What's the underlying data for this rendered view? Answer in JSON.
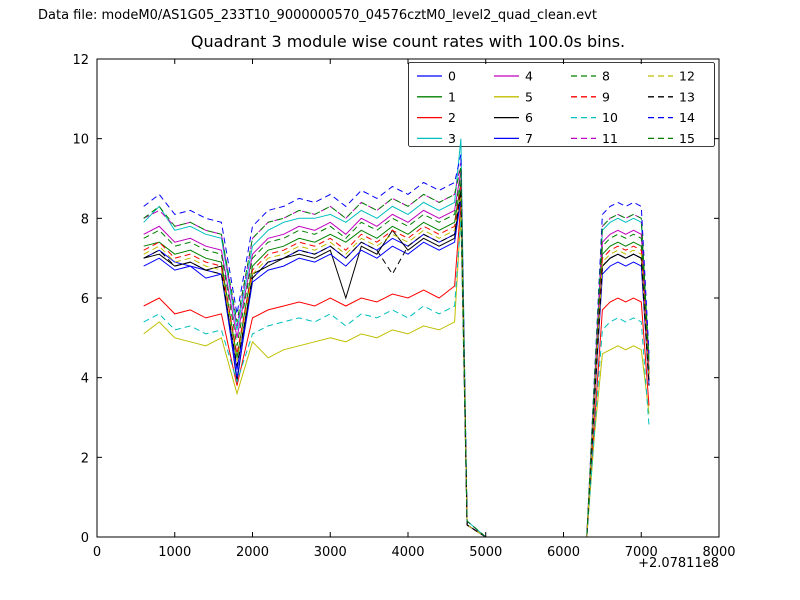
{
  "header": {
    "data_file_label": "Data file: modeM0/AS1G05_233T10_9000000570_04576cztM0_level2_quad_clean.evt"
  },
  "chart_data": {
    "type": "line",
    "title": "Quadrant 3 module wise count rates with 100.0s bins.",
    "xlabel": "",
    "ylabel": "",
    "xlim": [
      0,
      8000
    ],
    "ylim": [
      0,
      12
    ],
    "xticks": [
      0,
      1000,
      2000,
      3000,
      4000,
      5000,
      6000,
      7000,
      8000
    ],
    "yticks": [
      0,
      2,
      4,
      6,
      8,
      10,
      12
    ],
    "x_offset_label": "+2.07811e8",
    "legend_position": "upper center",
    "grid": false,
    "x": [
      600,
      800,
      1000,
      1200,
      1400,
      1600,
      1800,
      2000,
      2200,
      2400,
      2600,
      2800,
      3000,
      3200,
      3400,
      3600,
      3800,
      4000,
      4200,
      4400,
      4600,
      4680,
      4760,
      5000,
      5500,
      6000,
      6300,
      6400,
      6500,
      6600,
      6700,
      6800,
      6900,
      7000,
      7100
    ],
    "series": [
      {
        "name": "0",
        "color": "#0000ff",
        "dashed": false,
        "values": [
          7.0,
          7.2,
          6.9,
          6.8,
          6.7,
          6.6,
          4.2,
          6.5,
          6.9,
          7.0,
          7.2,
          7.1,
          7.3,
          7.0,
          7.4,
          7.2,
          7.5,
          7.3,
          7.6,
          7.4,
          7.6,
          8.6,
          0.3,
          0,
          0,
          0,
          0,
          3.5,
          6.8,
          7.0,
          7.1,
          7.0,
          7.1,
          7.0,
          3.9
        ]
      },
      {
        "name": "1",
        "color": "#008000",
        "dashed": false,
        "values": [
          7.3,
          7.4,
          7.1,
          7.2,
          7.0,
          6.9,
          4.5,
          6.8,
          7.2,
          7.3,
          7.5,
          7.4,
          7.6,
          7.4,
          7.7,
          7.5,
          7.8,
          7.6,
          7.9,
          7.7,
          7.9,
          8.9,
          0.3,
          0,
          0,
          0,
          0,
          3.6,
          7.1,
          7.3,
          7.4,
          7.3,
          7.4,
          7.3,
          4.1
        ]
      },
      {
        "name": "2",
        "color": "#ff0000",
        "dashed": false,
        "values": [
          5.8,
          6.0,
          5.6,
          5.7,
          5.5,
          5.6,
          3.8,
          5.5,
          5.7,
          5.8,
          5.9,
          5.8,
          6.0,
          5.8,
          6.0,
          5.9,
          6.1,
          6.0,
          6.2,
          6.0,
          6.3,
          8.4,
          0.3,
          0,
          0,
          0,
          0,
          2.9,
          5.7,
          5.9,
          6.0,
          5.9,
          6.0,
          5.9,
          3.3
        ]
      },
      {
        "name": "3",
        "color": "#00bfbf",
        "dashed": false,
        "values": [
          7.9,
          8.3,
          7.7,
          7.8,
          7.6,
          7.5,
          5.2,
          7.3,
          7.7,
          7.9,
          8.0,
          8.0,
          8.1,
          7.9,
          8.2,
          8.0,
          8.3,
          8.1,
          8.4,
          8.2,
          8.4,
          10.0,
          0.4,
          0,
          0,
          0,
          0,
          3.9,
          7.7,
          7.9,
          8.0,
          7.9,
          8.0,
          7.9,
          4.4
        ]
      },
      {
        "name": "4",
        "color": "#bf00bf",
        "dashed": false,
        "values": [
          7.6,
          7.8,
          7.4,
          7.5,
          7.3,
          7.2,
          5.0,
          7.1,
          7.5,
          7.6,
          7.8,
          7.7,
          7.9,
          7.6,
          8.0,
          7.8,
          8.1,
          7.9,
          8.2,
          8.0,
          8.2,
          9.2,
          0.3,
          0,
          0,
          0,
          0,
          3.8,
          7.4,
          7.6,
          7.7,
          7.6,
          7.7,
          7.6,
          4.2
        ]
      },
      {
        "name": "5",
        "color": "#bfbf00",
        "dashed": false,
        "values": [
          5.1,
          5.4,
          5.0,
          4.9,
          4.8,
          5.0,
          3.6,
          4.9,
          4.5,
          4.7,
          4.8,
          4.9,
          5.0,
          4.9,
          5.1,
          5.0,
          5.2,
          5.1,
          5.3,
          5.2,
          5.4,
          8.1,
          0.3,
          0,
          0,
          0,
          0,
          2.6,
          4.6,
          4.7,
          4.8,
          4.7,
          4.8,
          4.7,
          3.1
        ]
      },
      {
        "name": "6",
        "color": "#000000",
        "dashed": false,
        "values": [
          7.0,
          7.1,
          6.8,
          6.9,
          6.7,
          6.8,
          3.9,
          6.6,
          6.8,
          7.0,
          7.1,
          7.0,
          7.2,
          6.0,
          7.3,
          7.1,
          7.7,
          7.2,
          7.5,
          7.3,
          7.5,
          8.7,
          0.3,
          0,
          0,
          0,
          0,
          3.5,
          6.8,
          7.0,
          7.1,
          7.0,
          7.1,
          7.0,
          3.9
        ]
      },
      {
        "name": "7",
        "color": "#0000ff",
        "dashed": false,
        "values": [
          6.8,
          7.0,
          6.7,
          6.8,
          6.5,
          6.6,
          4.0,
          6.4,
          6.7,
          6.8,
          7.0,
          6.9,
          7.1,
          6.8,
          7.2,
          7.0,
          7.3,
          7.1,
          7.4,
          7.2,
          7.4,
          8.5,
          0.3,
          0,
          0,
          0,
          0,
          3.4,
          6.6,
          6.8,
          6.9,
          6.8,
          6.9,
          6.8,
          3.8
        ]
      },
      {
        "name": "8",
        "color": "#008000",
        "dashed": true,
        "values": [
          7.5,
          7.7,
          7.3,
          7.4,
          7.2,
          7.1,
          4.8,
          7.0,
          7.4,
          7.5,
          7.7,
          7.6,
          7.8,
          7.5,
          7.9,
          7.7,
          8.0,
          7.8,
          8.1,
          7.9,
          8.1,
          9.1,
          0.3,
          0,
          0,
          0,
          0,
          3.7,
          7.3,
          7.5,
          7.6,
          7.5,
          7.6,
          7.5,
          4.2
        ]
      },
      {
        "name": "9",
        "color": "#ff0000",
        "dashed": true,
        "values": [
          7.2,
          7.4,
          7.0,
          7.1,
          6.9,
          6.8,
          4.6,
          6.7,
          7.1,
          7.2,
          7.4,
          7.3,
          7.5,
          7.2,
          7.6,
          7.4,
          7.7,
          7.5,
          7.8,
          7.6,
          7.8,
          8.8,
          0.3,
          0,
          0,
          0,
          0,
          3.6,
          7.0,
          7.2,
          7.3,
          7.2,
          7.3,
          7.2,
          4.0
        ]
      },
      {
        "name": "10",
        "color": "#00bfbf",
        "dashed": true,
        "values": [
          5.4,
          5.6,
          5.2,
          5.3,
          5.1,
          5.2,
          3.9,
          5.1,
          5.3,
          5.4,
          5.5,
          5.4,
          5.6,
          5.3,
          5.6,
          5.5,
          5.7,
          5.5,
          5.8,
          5.6,
          5.8,
          8.0,
          0.3,
          0,
          0,
          0,
          0,
          2.7,
          5.2,
          5.4,
          5.5,
          5.4,
          5.5,
          5.4,
          2.8
        ]
      },
      {
        "name": "11",
        "color": "#bf00bf",
        "dashed": true,
        "values": [
          8.0,
          8.2,
          7.8,
          7.9,
          7.7,
          7.6,
          5.3,
          7.5,
          7.9,
          8.0,
          8.2,
          8.1,
          8.3,
          8.0,
          8.4,
          8.2,
          8.5,
          8.3,
          8.6,
          8.4,
          8.6,
          9.4,
          0.3,
          0,
          0,
          0,
          0,
          3.9,
          7.8,
          8.0,
          8.1,
          8.0,
          8.1,
          8.0,
          4.4
        ]
      },
      {
        "name": "12",
        "color": "#bfbf00",
        "dashed": true,
        "values": [
          7.1,
          7.3,
          6.9,
          7.0,
          6.8,
          6.7,
          4.4,
          6.6,
          7.0,
          7.1,
          7.3,
          7.2,
          7.4,
          7.1,
          7.5,
          7.3,
          7.6,
          7.4,
          7.7,
          7.5,
          7.7,
          8.6,
          0.3,
          0,
          0,
          0,
          0,
          3.5,
          6.9,
          7.1,
          7.2,
          7.1,
          7.2,
          7.1,
          3.9
        ]
      },
      {
        "name": "13",
        "color": "#000000",
        "dashed": true,
        "values": [
          7.0,
          7.2,
          6.8,
          6.9,
          6.7,
          6.6,
          4.3,
          6.5,
          6.9,
          7.0,
          7.2,
          7.1,
          7.3,
          7.0,
          7.4,
          7.2,
          6.6,
          7.3,
          7.6,
          7.4,
          7.6,
          8.7,
          0.3,
          0,
          0,
          0,
          0,
          3.5,
          6.8,
          7.0,
          7.1,
          7.0,
          7.1,
          7.0,
          3.8
        ]
      },
      {
        "name": "14",
        "color": "#0000ff",
        "dashed": true,
        "values": [
          8.3,
          8.6,
          8.1,
          8.2,
          8.0,
          7.9,
          5.6,
          7.8,
          8.2,
          8.3,
          8.5,
          8.4,
          8.6,
          8.3,
          8.7,
          8.5,
          8.8,
          8.6,
          8.9,
          8.7,
          8.9,
          9.6,
          0.4,
          0,
          0,
          0,
          0,
          4.1,
          8.1,
          8.3,
          8.4,
          8.3,
          8.4,
          8.3,
          4.6
        ]
      },
      {
        "name": "15",
        "color": "#008000",
        "dashed": true,
        "values": [
          8.0,
          8.3,
          7.8,
          7.9,
          7.7,
          7.6,
          5.4,
          7.5,
          7.9,
          8.0,
          8.2,
          8.1,
          8.3,
          8.0,
          8.4,
          8.2,
          8.5,
          8.3,
          8.6,
          8.4,
          8.6,
          9.3,
          0.4,
          0,
          0,
          0,
          0,
          4.0,
          7.8,
          8.0,
          8.1,
          8.0,
          8.1,
          8.0,
          4.4
        ]
      }
    ]
  }
}
